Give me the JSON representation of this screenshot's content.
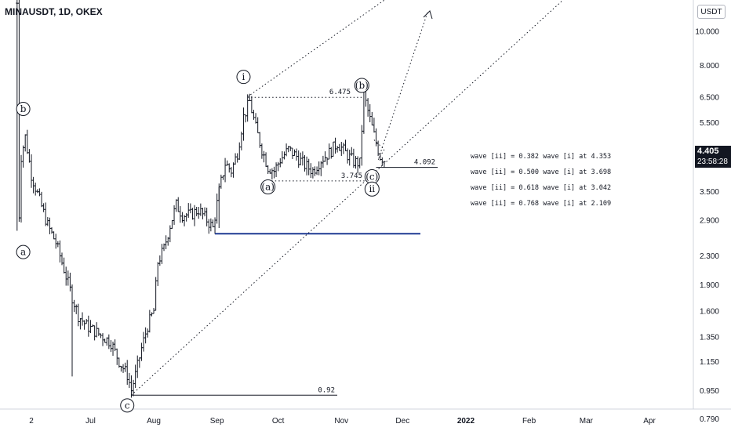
{
  "header": {
    "title": "MINAUSDT, 1D, OKEX",
    "currency": "USDT"
  },
  "price_tag": {
    "price": "4.405",
    "countdown": "23:58:28"
  },
  "colors": {
    "candle": "#131722",
    "support_line": "#1f3a93",
    "grid_axis": "#d1d4dc",
    "text": "#131722"
  },
  "chart_data": {
    "type": "candlestick",
    "yscale": "log",
    "ylim": [
      0.72,
      14.0
    ],
    "y_ticks": [
      "10.000",
      "8.000",
      "6.500",
      "5.500",
      "4.405",
      "3.500",
      "2.900",
      "2.300",
      "1.900",
      "1.600",
      "1.350",
      "1.150",
      "0.950",
      "0.790"
    ],
    "x_ticks": [
      "2",
      "Jul",
      "Aug",
      "Sep",
      "Oct",
      "Nov",
      "Dec",
      "2022",
      "Feb",
      "Mar",
      "Apr"
    ],
    "x_range": [
      "2021-05-26",
      "2022-04-30"
    ],
    "x_tick_dates": [
      "2021-06-02",
      "2021-07-01",
      "2021-08-01",
      "2021-09-01",
      "2021-10-01",
      "2021-11-01",
      "2021-12-01",
      "2022-01-01",
      "2022-02-01",
      "2022-03-01",
      "2022-04-01"
    ],
    "price_path": [
      [
        "2021-05-26",
        12.0
      ],
      [
        "2021-05-27",
        3.0
      ],
      [
        "2021-05-28",
        4.4
      ],
      [
        "2021-05-30",
        5.0
      ],
      [
        "2021-06-02",
        3.9
      ],
      [
        "2021-06-06",
        3.3
      ],
      [
        "2021-06-10",
        2.8
      ],
      [
        "2021-06-14",
        2.5
      ],
      [
        "2021-06-18",
        2.1
      ],
      [
        "2021-06-22",
        1.75
      ],
      [
        "2021-06-25",
        1.55
      ],
      [
        "2021-06-29",
        1.45
      ],
      [
        "2021-07-03",
        1.4
      ],
      [
        "2021-07-07",
        1.35
      ],
      [
        "2021-07-11",
        1.3
      ],
      [
        "2021-07-15",
        1.15
      ],
      [
        "2021-07-19",
        1.05
      ],
      [
        "2021-07-21",
        0.95
      ],
      [
        "2021-07-23",
        1.05
      ],
      [
        "2021-07-26",
        1.25
      ],
      [
        "2021-07-29",
        1.45
      ],
      [
        "2021-08-01",
        1.6
      ],
      [
        "2021-08-03",
        2.2
      ],
      [
        "2021-08-06",
        2.4
      ],
      [
        "2021-08-09",
        2.8
      ],
      [
        "2021-08-12",
        3.2
      ],
      [
        "2021-08-15",
        3.0
      ],
      [
        "2021-08-19",
        3.0
      ],
      [
        "2021-08-23",
        3.1
      ],
      [
        "2021-08-27",
        2.9
      ],
      [
        "2021-08-30",
        2.75
      ],
      [
        "2021-09-02",
        3.5
      ],
      [
        "2021-09-05",
        4.2
      ],
      [
        "2021-09-08",
        4.0
      ],
      [
        "2021-09-11",
        4.5
      ],
      [
        "2021-09-14",
        5.7
      ],
      [
        "2021-09-17",
        6.3
      ],
      [
        "2021-09-20",
        5.3
      ],
      [
        "2021-09-23",
        4.6
      ],
      [
        "2021-09-26",
        4.1
      ],
      [
        "2021-09-29",
        4.0
      ],
      [
        "2021-10-02",
        4.3
      ],
      [
        "2021-10-06",
        4.6
      ],
      [
        "2021-10-10",
        4.4
      ],
      [
        "2021-10-14",
        4.15
      ],
      [
        "2021-10-18",
        4.0
      ],
      [
        "2021-10-22",
        4.3
      ],
      [
        "2021-10-26",
        4.5
      ],
      [
        "2021-10-30",
        4.8
      ],
      [
        "2021-11-03",
        4.5
      ],
      [
        "2021-11-07",
        4.25
      ],
      [
        "2021-11-10",
        4.2
      ],
      [
        "2021-11-12",
        6.6
      ],
      [
        "2021-11-15",
        5.6
      ],
      [
        "2021-11-18",
        4.8
      ],
      [
        "2021-11-20",
        4.4
      ],
      [
        "2021-11-22",
        4.3
      ]
    ],
    "annotations": {
      "wave_labels": [
        {
          "text": "b",
          "date": "2021-05-29",
          "price": 6.0
        },
        {
          "text": "a",
          "date": "2021-05-29",
          "price": 2.35
        },
        {
          "text": "c",
          "date": "2021-07-19",
          "price": 0.86
        },
        {
          "text": "i",
          "date": "2021-09-14",
          "price": 7.4
        },
        {
          "text": "(b)",
          "date": "2021-11-11",
          "price": 7.0
        },
        {
          "text": "(a)",
          "date": "2021-09-26",
          "price": 3.6
        },
        {
          "text": "(c)",
          "date": "2021-11-16",
          "price": 3.85
        },
        {
          "text": "ii",
          "date": "2021-11-16",
          "price": 3.55
        }
      ],
      "level_labels": [
        {
          "text": "6.475",
          "price": 6.475
        },
        {
          "text": "3.745",
          "price": 3.745
        },
        {
          "text": "4.092",
          "price": 4.092
        },
        {
          "text": "0.92",
          "price": 0.92
        }
      ],
      "fib_notes": [
        "wave [ii] = 0.382 wave [i] at 4.353",
        "wave [ii] = 0.500 wave [i] at 3.698",
        "wave [ii] = 0.618 wave [i] at 3.042",
        "wave [ii] = 0.768 wave [i] at 2.109"
      ],
      "support_level": 2.65
    }
  }
}
